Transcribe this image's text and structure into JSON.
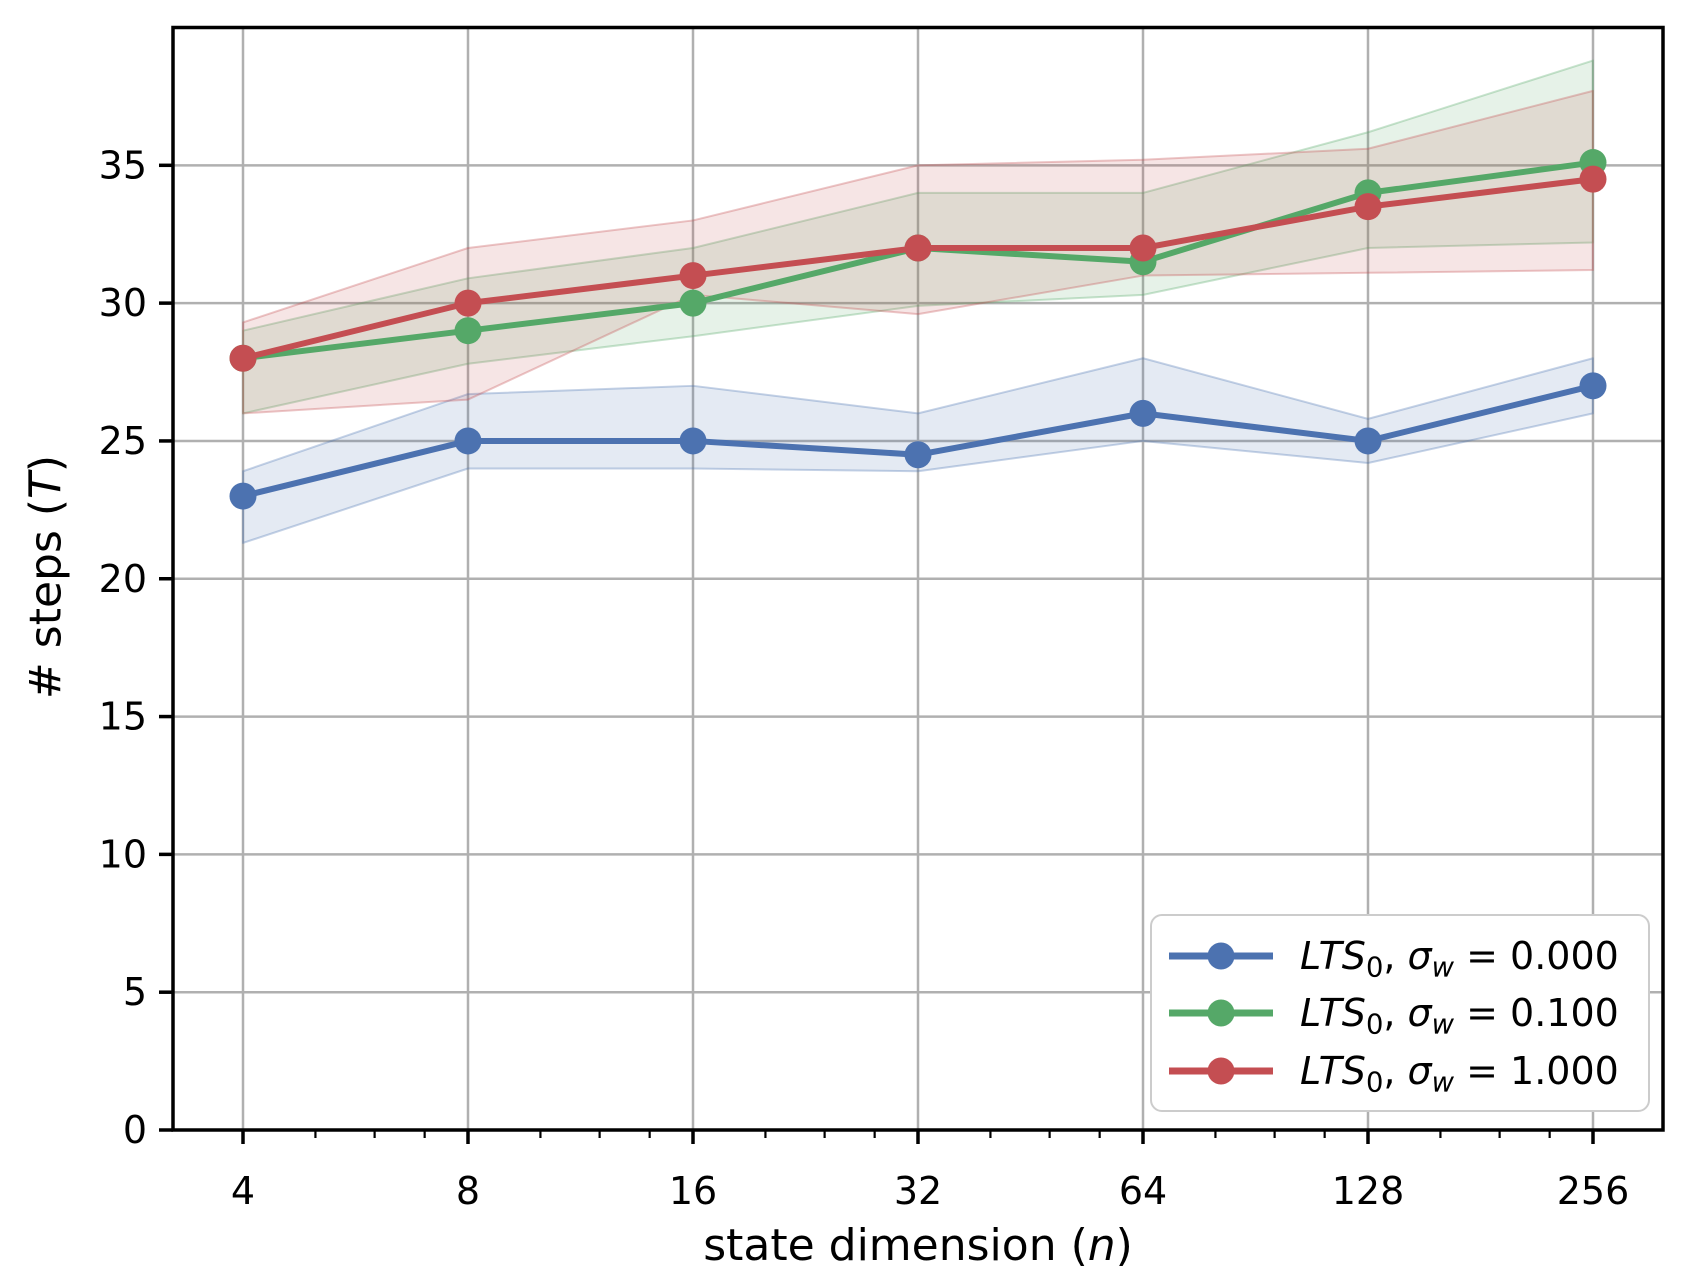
{
  "chart_data": {
    "type": "line",
    "title": "",
    "xlabel": "state dimension (n)",
    "ylabel": "# steps (T)",
    "x_scale": "log2",
    "grid": true,
    "legend_position": "lower right",
    "x": [
      4,
      8,
      16,
      32,
      64,
      128,
      256
    ],
    "x_tick_labels": [
      "4",
      "8",
      "16",
      "32",
      "64",
      "128",
      "256"
    ],
    "x_minor_ticks": [
      5,
      6,
      7,
      10,
      12,
      14,
      20,
      24,
      28,
      40,
      48,
      56,
      80,
      96,
      112,
      160,
      192,
      224
    ],
    "y_ticks": [
      0,
      5,
      10,
      15,
      20,
      25,
      30,
      35
    ],
    "ylim": [
      0,
      40
    ],
    "series": [
      {
        "name": "LTS_0, sigma_w = 0.000",
        "color": "#4C72B0",
        "values": [
          23,
          25,
          25,
          24.5,
          26,
          25,
          27
        ],
        "band_low": [
          21.3,
          24.0,
          24.0,
          23.9,
          25.0,
          24.2,
          26.0
        ],
        "band_high": [
          23.9,
          26.7,
          27.0,
          26.0,
          28.0,
          25.8,
          28.0
        ]
      },
      {
        "name": "LTS_0, sigma_w = 0.100",
        "color": "#55A868",
        "values": [
          28,
          29,
          30,
          32,
          31.5,
          34,
          35.1
        ],
        "band_low": [
          26.0,
          27.8,
          28.8,
          29.9,
          30.3,
          32.0,
          32.2
        ],
        "band_high": [
          29.0,
          30.9,
          32.0,
          34.0,
          34.0,
          36.2,
          38.8
        ]
      },
      {
        "name": "LTS_0, sigma_w = 1.000",
        "color": "#C44E52",
        "values": [
          28,
          30,
          31,
          32,
          32,
          33.5,
          34.5
        ],
        "band_low": [
          26.0,
          26.5,
          30.3,
          29.6,
          31.0,
          31.1,
          31.2
        ],
        "band_high": [
          29.3,
          32.0,
          33.0,
          35.0,
          35.2,
          35.6,
          37.7
        ]
      }
    ]
  },
  "x_axis": {
    "label_prefix": "state dimension (",
    "label_var": "n",
    "label_suffix": ")"
  },
  "y_axis": {
    "label_prefix": "# steps (",
    "label_var": "T",
    "label_suffix": ")"
  },
  "legend": {
    "items": [
      {
        "name": "LTS",
        "name_sub": "0",
        "sep": ", ",
        "sigma": "σ",
        "sigma_sub": "w",
        "eq": " = ",
        "value": "0.000",
        "color": "#4C72B0"
      },
      {
        "name": "LTS",
        "name_sub": "0",
        "sep": ", ",
        "sigma": "σ",
        "sigma_sub": "w",
        "eq": " = ",
        "value": "0.100",
        "color": "#55A868"
      },
      {
        "name": "LTS",
        "name_sub": "0",
        "sep": ", ",
        "sigma": "σ",
        "sigma_sub": "w",
        "eq": " = ",
        "value": "1.000",
        "color": "#C44E52"
      }
    ]
  }
}
